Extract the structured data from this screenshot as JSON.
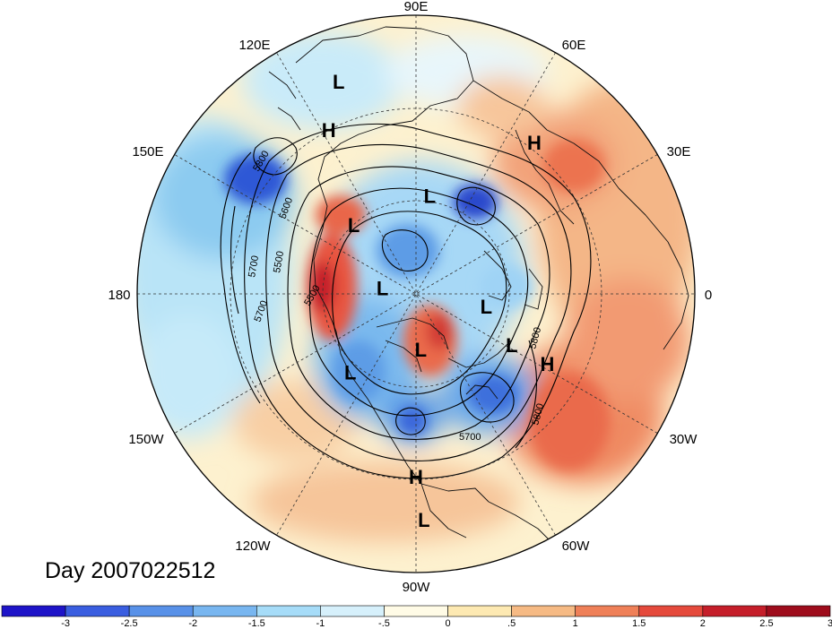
{
  "title": "Day 2007022512",
  "longitude_labels": [
    "90E",
    "60E",
    "30E",
    "0",
    "30W",
    "60W",
    "90W",
    "120W",
    "150W",
    "180",
    "150E",
    "120E"
  ],
  "pressure_centers": [
    {
      "type": "L",
      "lon": 118,
      "lat": 55
    },
    {
      "type": "H",
      "lon": 118,
      "lat": 42
    },
    {
      "type": "H",
      "lon": 38,
      "lat": 28
    },
    {
      "type": "L",
      "lon": 178,
      "lat": 17
    },
    {
      "type": "H",
      "lon": 180,
      "lat": 31
    },
    {
      "type": "L",
      "lon": 100,
      "lat": 67
    },
    {
      "type": "L",
      "lon": 8,
      "lat": 58
    },
    {
      "type": "L",
      "lon": 175,
      "lat": 72
    },
    {
      "type": "L",
      "lon": -80,
      "lat": 79
    },
    {
      "type": "L",
      "lon": -140,
      "lat": 57
    },
    {
      "type": "L",
      "lon": -42,
      "lat": 60
    },
    {
      "type": "H",
      "lon": -28,
      "lat": 30
    },
    {
      "type": "L",
      "lon": -20,
      "lat": 17
    }
  ],
  "contour_labels": [
    "5800",
    "5600",
    "5700",
    "5500",
    "5500",
    "5700",
    "5700",
    "5800",
    "5800"
  ],
  "colorbar": {
    "ticks": [
      "-3",
      "-2.5",
      "-2",
      "-1.5",
      "-1",
      "-.5",
      "0",
      ".5",
      "1",
      "1.5",
      "2",
      "2.5",
      "3"
    ],
    "colors": [
      "#1e14c8",
      "#3a5ee0",
      "#5891e8",
      "#78b6f0",
      "#a6dcf8",
      "#d6f0fb",
      "#fffbe6",
      "#fde9b2",
      "#f6ba84",
      "#ef8058",
      "#e54a3c",
      "#c51e2a",
      "#9e0c1c"
    ]
  }
}
